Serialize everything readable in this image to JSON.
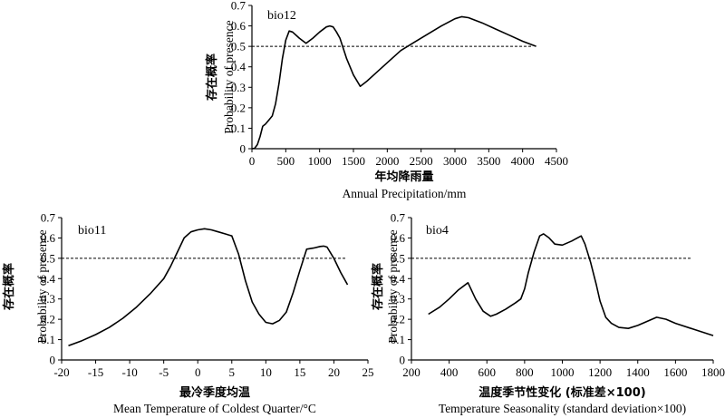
{
  "chart_data": [
    {
      "type": "line",
      "panel_label": "bio12",
      "ylabel_cn": "存在概率",
      "ylabel": "Probability of presence",
      "xlabel_cn": "年均降雨量",
      "xlabel": "Annual Precipitation/mm",
      "xlim": [
        0,
        4500
      ],
      "ylim": [
        0,
        0.7
      ],
      "xticks": [
        0,
        500,
        1000,
        1500,
        2000,
        2500,
        3000,
        3500,
        4000,
        4500
      ],
      "yticks": [
        0,
        0.1,
        0.2,
        0.3,
        0.4,
        0.5,
        0.6,
        0.7
      ],
      "threshold": 0.5,
      "x": [
        0,
        40,
        80,
        120,
        160,
        200,
        250,
        300,
        350,
        400,
        450,
        500,
        550,
        600,
        700,
        800,
        900,
        1000,
        1100,
        1150,
        1200,
        1250,
        1300,
        1350,
        1400,
        1500,
        1600,
        1700,
        1800,
        2000,
        2200,
        2400,
        2600,
        2800,
        3000,
        3100,
        3200,
        3400,
        3600,
        3800,
        4000,
        4200
      ],
      "values": [
        0,
        0.002,
        0.02,
        0.06,
        0.11,
        0.12,
        0.14,
        0.16,
        0.22,
        0.32,
        0.44,
        0.53,
        0.575,
        0.57,
        0.54,
        0.515,
        0.54,
        0.57,
        0.595,
        0.6,
        0.595,
        0.57,
        0.54,
        0.49,
        0.44,
        0.36,
        0.305,
        0.33,
        0.36,
        0.42,
        0.48,
        0.52,
        0.56,
        0.6,
        0.635,
        0.645,
        0.64,
        0.615,
        0.585,
        0.555,
        0.525,
        0.5
      ]
    },
    {
      "type": "line",
      "panel_label": "bio11",
      "ylabel_cn": "存在概率",
      "ylabel": "Probability of presence",
      "xlabel_cn": "最冷季度均温",
      "xlabel": "Mean Temperature of Coldest Quarter/°C",
      "xlim": [
        -20,
        25
      ],
      "ylim": [
        0,
        0.7
      ],
      "xticks": [
        -20,
        -15,
        -10,
        -5,
        0,
        5,
        10,
        15,
        20,
        25
      ],
      "yticks": [
        0,
        0.1,
        0.2,
        0.3,
        0.4,
        0.5,
        0.6,
        0.7
      ],
      "threshold": 0.5,
      "x": [
        -19,
        -17,
        -15,
        -13,
        -11,
        -9,
        -7,
        -5,
        -4,
        -3,
        -2,
        -1,
        0,
        1,
        2,
        3,
        4,
        5,
        6,
        7,
        8,
        9,
        10,
        11,
        12,
        13,
        14,
        15,
        16,
        17,
        18,
        18.5,
        19,
        20,
        21,
        22
      ],
      "values": [
        0.07,
        0.095,
        0.125,
        0.16,
        0.205,
        0.26,
        0.325,
        0.4,
        0.46,
        0.53,
        0.6,
        0.63,
        0.64,
        0.645,
        0.64,
        0.63,
        0.62,
        0.61,
        0.52,
        0.39,
        0.285,
        0.225,
        0.185,
        0.178,
        0.195,
        0.235,
        0.33,
        0.44,
        0.545,
        0.55,
        0.558,
        0.56,
        0.555,
        0.5,
        0.43,
        0.37
      ]
    },
    {
      "type": "line",
      "panel_label": "bio4",
      "ylabel_cn": "存在概率",
      "ylabel": "Probability of presence",
      "xlabel_cn": "温度季节性变化 (标准差×100)",
      "xlabel": "Temperature Seasonality (standard deviation×100)",
      "xlim": [
        200,
        1800
      ],
      "ylim": [
        0,
        0.7
      ],
      "xticks": [
        200,
        400,
        600,
        800,
        1000,
        1200,
        1400,
        1600,
        1800
      ],
      "yticks": [
        0,
        0.1,
        0.2,
        0.3,
        0.4,
        0.5,
        0.6,
        0.7
      ],
      "threshold": 0.5,
      "x": [
        290,
        350,
        400,
        450,
        500,
        540,
        580,
        620,
        650,
        700,
        750,
        780,
        800,
        820,
        850,
        880,
        900,
        930,
        960,
        1000,
        1050,
        1080,
        1100,
        1120,
        1150,
        1180,
        1200,
        1230,
        1260,
        1300,
        1350,
        1400,
        1450,
        1500,
        1550,
        1600,
        1700,
        1800
      ],
      "values": [
        0.225,
        0.26,
        0.3,
        0.345,
        0.38,
        0.3,
        0.24,
        0.215,
        0.225,
        0.25,
        0.28,
        0.3,
        0.35,
        0.43,
        0.53,
        0.61,
        0.62,
        0.6,
        0.57,
        0.565,
        0.585,
        0.6,
        0.61,
        0.57,
        0.48,
        0.37,
        0.29,
        0.21,
        0.18,
        0.16,
        0.155,
        0.17,
        0.19,
        0.21,
        0.2,
        0.18,
        0.15,
        0.12
      ]
    }
  ]
}
